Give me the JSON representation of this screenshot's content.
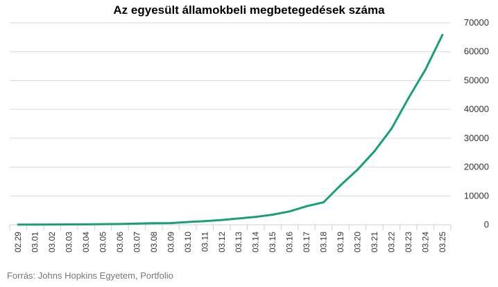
{
  "chart_data": {
    "type": "line",
    "title": "Az egyesült államokbeli megbetegedések száma",
    "source": "Forrás: Johns Hopkins Egyetem, Portfolio",
    "x": [
      "02.29",
      "03.01",
      "03.02",
      "03.03",
      "03.04",
      "03.05",
      "03.06",
      "03.07",
      "03.08",
      "03.09",
      "03.10",
      "03.11",
      "03.12",
      "03.13",
      "03.14",
      "03.15",
      "03.16",
      "03.17",
      "03.18",
      "03.19",
      "03.20",
      "03.21",
      "03.22",
      "03.23",
      "03.24",
      "03.25"
    ],
    "series": [
      {
        "color": "#1a9e7a",
        "values": [
          68,
          74,
          98,
          118,
          149,
          217,
          262,
          402,
          518,
          583,
          959,
          1281,
          1663,
          2179,
          2727,
          3499,
          4632,
          6421,
          7786,
          13680,
          19101,
          25493,
          33276,
          43847,
          53740,
          65778
        ]
      }
    ],
    "ylim": [
      0,
      70000
    ],
    "yticks": [
      0,
      10000,
      20000,
      30000,
      40000,
      50000,
      60000,
      70000
    ],
    "grid": true,
    "yaxis_side": "right",
    "xlabel": "",
    "ylabel": ""
  }
}
